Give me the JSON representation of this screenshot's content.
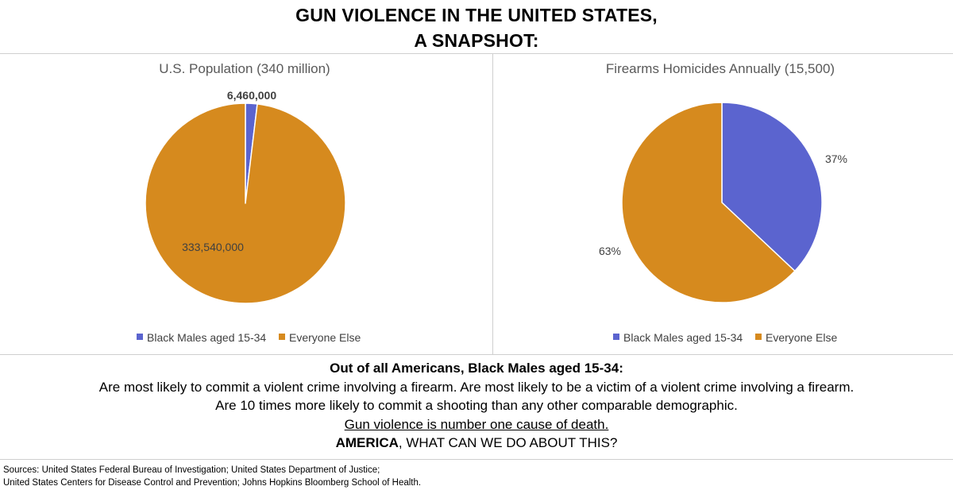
{
  "header": {
    "title_line1": "GUN VIOLENCE IN THE UNITED STATES,",
    "title_line2": "A SNAPSHOT:"
  },
  "chart_data": [
    {
      "type": "pie",
      "title": "U.S. Population (340 million)",
      "categories": [
        "Black Males aged 15-34",
        "Everyone Else"
      ],
      "values": [
        6460000,
        333540000
      ],
      "data_labels": [
        "6,460,000",
        "333,540,000"
      ],
      "legend": "bottom",
      "colors": [
        "#5b64cf",
        "#d68a1e"
      ]
    },
    {
      "type": "pie",
      "title": "Firearms Homicides Annually (15,500)",
      "categories": [
        "Black Males aged 15-34",
        "Everyone Else"
      ],
      "values": [
        37,
        63
      ],
      "data_labels": [
        "37%",
        "63%"
      ],
      "legend": "bottom",
      "colors": [
        "#5b64cf",
        "#d68a1e"
      ]
    }
  ],
  "facts": {
    "heading": "Out of all Americans, Black Males aged 15-34:",
    "line1": "Are most likely to commit a violent crime involving a firearm. Are most likely to be a victim of a violent crime involving a firearm.",
    "line2": "Are 10 times more likely to commit a shooting than any other comparable demographic.",
    "line3": "Gun violence is number one cause of death.",
    "line4_bold": "AMERICA",
    "line4_rest": ", WHAT CAN WE DO ABOUT THIS?"
  },
  "sources": {
    "line1": "Sources: United States Federal Bureau of Investigation; United States Department of Justice;",
    "line2": "United States Centers for Disease Control and Prevention; Johns Hopkins Bloomberg School of Health."
  }
}
